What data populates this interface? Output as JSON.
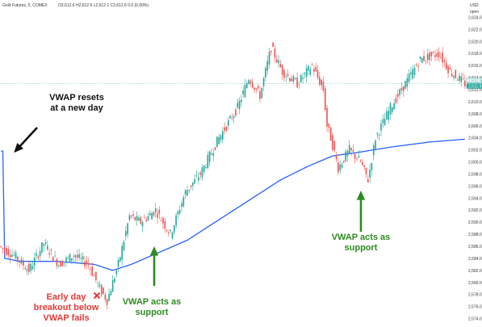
{
  "header": {
    "instrument": "Gold Futures, 5, COMEX",
    "ohlc": "O2,612.6  H2,612.6  L2,612.1  C2,612.6  0.0 (0.00%)",
    "currency": "USD",
    "unit": "open"
  },
  "colors": {
    "up": "#26a69a",
    "down": "#ef5350",
    "vwap": "#2962ff",
    "annotation_black": "#111111",
    "annotation_red": "#e53935",
    "annotation_green": "#2e8b22",
    "price_line": "#80cbc4",
    "price_tag_bg": "#26a69a"
  },
  "chart_data": {
    "type": "candlestick",
    "title": "",
    "xlabel": "",
    "ylabel": "",
    "ylim": [
      2573,
      2625
    ],
    "y_ticks": [
      "2,624.0",
      "2,622.0",
      "2,620.0",
      "2,618.0",
      "2,616.0",
      "2,614.0",
      "2,612.0",
      "2,610.0",
      "2,608.0",
      "2,606.0",
      "2,604.0",
      "2,602.0",
      "2,600.0",
      "2,598.0",
      "2,596.0",
      "2,594.0",
      "2,592.0",
      "2,590.0",
      "2,588.0",
      "2,586.0",
      "2,584.0",
      "2,582.0",
      "2,580.0",
      "2,578.0",
      "2,576.0",
      "2,574.0"
    ],
    "current_price_labels": [
      "2,612.6",
      "2,611.9"
    ],
    "grid": false,
    "price_keypoints": [
      [
        0,
        2586
      ],
      [
        8,
        2584.5
      ],
      [
        16,
        2582
      ],
      [
        24,
        2586.5
      ],
      [
        32,
        2583
      ],
      [
        40,
        2584.5
      ],
      [
        48,
        2583
      ],
      [
        54,
        2579
      ],
      [
        58,
        2577
      ],
      [
        64,
        2583
      ],
      [
        70,
        2591
      ],
      [
        76,
        2590
      ],
      [
        84,
        2592
      ],
      [
        92,
        2588
      ],
      [
        100,
        2595
      ],
      [
        108,
        2598
      ],
      [
        118,
        2604
      ],
      [
        128,
        2609
      ],
      [
        134,
        2614
      ],
      [
        140,
        2611
      ],
      [
        146,
        2619
      ],
      [
        152,
        2615
      ],
      [
        160,
        2613
      ],
      [
        168,
        2616
      ],
      [
        174,
        2612
      ],
      [
        176,
        2606
      ],
      [
        178,
        2604
      ],
      [
        182,
        2599
      ],
      [
        188,
        2602
      ],
      [
        194,
        2600
      ],
      [
        198,
        2597
      ],
      [
        202,
        2604
      ],
      [
        210,
        2609
      ],
      [
        218,
        2613
      ],
      [
        226,
        2617
      ],
      [
        236,
        2618
      ],
      [
        242,
        2615
      ],
      [
        250,
        2613
      ]
    ],
    "vwap_keypoints": [
      [
        0,
        2601.8
      ],
      [
        1,
        2601.8
      ],
      [
        2,
        2584
      ],
      [
        10,
        2583.5
      ],
      [
        30,
        2583.5
      ],
      [
        50,
        2583
      ],
      [
        60,
        2582
      ],
      [
        70,
        2583
      ],
      [
        85,
        2585
      ],
      [
        100,
        2587
      ],
      [
        115,
        2590
      ],
      [
        130,
        2593
      ],
      [
        150,
        2597
      ],
      [
        165,
        2599.3
      ],
      [
        178,
        2601
      ],
      [
        190,
        2601.5
      ],
      [
        210,
        2602.5
      ],
      [
        230,
        2603.3
      ],
      [
        250,
        2603.8
      ]
    ],
    "annotations": [
      {
        "id": "vwap-reset",
        "lines": [
          "VWAP resets",
          "at a new day"
        ],
        "color": "annotation_black"
      },
      {
        "id": "early-breakout",
        "lines": [
          "Early day",
          "breakout below",
          "VWAP fails"
        ],
        "color": "annotation_red"
      },
      {
        "id": "support-1",
        "lines": [
          "VWAP acts as",
          "support"
        ],
        "color": "annotation_green"
      },
      {
        "id": "support-2",
        "lines": [
          "VWAP acts as",
          "support"
        ],
        "color": "annotation_green"
      }
    ]
  }
}
